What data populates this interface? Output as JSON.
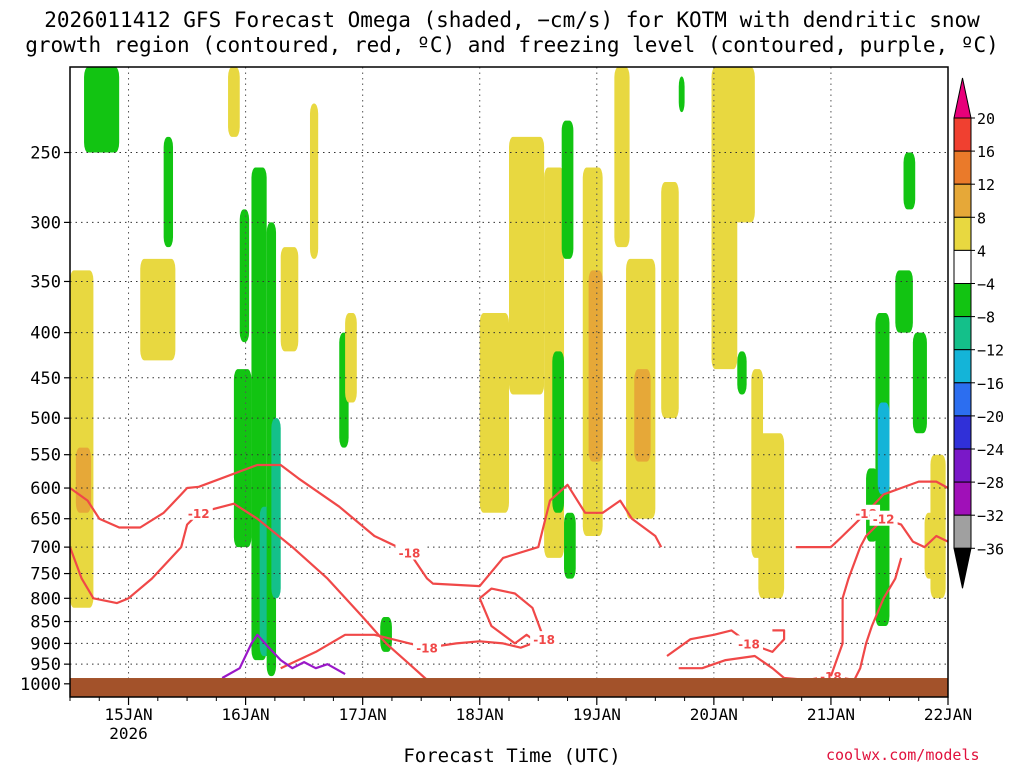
{
  "title": {
    "line1": "2026011412 GFS Forecast Omega (shaded, −cm/s) for KOTM with dendritic snow",
    "line2": "growth region (contoured, red, ºC) and freezing level (contoured, purple, ºC)"
  },
  "xlabel": "Forecast Time (UTC)",
  "credit": "coolwx.com/models",
  "chart_data": {
    "type": "heatmap",
    "x_ticks": [
      {
        "label": "15JAN",
        "sub": "2026",
        "day": 15
      },
      {
        "label": "16JAN",
        "sub": "",
        "day": 16
      },
      {
        "label": "17JAN",
        "sub": "",
        "day": 17
      },
      {
        "label": "18JAN",
        "sub": "",
        "day": 18
      },
      {
        "label": "19JAN",
        "sub": "",
        "day": 19
      },
      {
        "label": "20JAN",
        "sub": "",
        "day": 20
      },
      {
        "label": "21JAN",
        "sub": "",
        "day": 21
      },
      {
        "label": "22JAN",
        "sub": "",
        "day": 22
      }
    ],
    "x_range_days": [
      14.5,
      22.0
    ],
    "y_ticks": [
      250,
      300,
      350,
      400,
      450,
      500,
      550,
      600,
      650,
      700,
      750,
      800,
      850,
      900,
      950,
      1000
    ],
    "y_range_hpa": [
      200,
      1035
    ],
    "y_scale": "log-pressure",
    "grid": true,
    "colorbar": {
      "labels": [
        "20",
        "16",
        "12",
        "8",
        "4",
        "−4",
        "−8",
        "−12",
        "−16",
        "−20",
        "−24",
        "−28",
        "−32",
        "−36"
      ],
      "colors": [
        "#e8007a",
        "#f04030",
        "#ea7a2a",
        "#e6a838",
        "#e8d840",
        "#ffffff",
        "#12c412",
        "#14c08a",
        "#14b4d8",
        "#2c6ef0",
        "#3030d8",
        "#7a18c8",
        "#a010b8",
        "#a0a0a0",
        "#000000"
      ]
    },
    "omega_blobs": [
      {
        "x": [
          14.5,
          14.7
        ],
        "p": [
          340,
          820
        ],
        "v": 5
      },
      {
        "x": [
          14.55,
          14.68
        ],
        "p": [
          540,
          640
        ],
        "v": 9
      },
      {
        "x": [
          14.62,
          14.92
        ],
        "p": [
          200,
          250
        ],
        "v": -7
      },
      {
        "x": [
          15.1,
          15.4
        ],
        "p": [
          330,
          430
        ],
        "v": 5
      },
      {
        "x": [
          15.3,
          15.38
        ],
        "p": [
          240,
          320
        ],
        "v": -7
      },
      {
        "x": [
          15.85,
          15.95
        ],
        "p": [
          200,
          240
        ],
        "v": 5
      },
      {
        "x": [
          15.9,
          16.05
        ],
        "p": [
          440,
          700
        ],
        "v": -7
      },
      {
        "x": [
          15.95,
          16.03
        ],
        "p": [
          290,
          410
        ],
        "v": -7
      },
      {
        "x": [
          16.05,
          16.18
        ],
        "p": [
          260,
          940
        ],
        "v": -7
      },
      {
        "x": [
          16.12,
          16.22
        ],
        "p": [
          630,
          930
        ],
        "v": -11
      },
      {
        "x": [
          16.18,
          16.26
        ],
        "p": [
          300,
          980
        ],
        "v": -7
      },
      {
        "x": [
          16.22,
          16.3
        ],
        "p": [
          500,
          800
        ],
        "v": -11
      },
      {
        "x": [
          16.3,
          16.45
        ],
        "p": [
          320,
          420
        ],
        "v": 5
      },
      {
        "x": [
          16.55,
          16.62
        ],
        "p": [
          220,
          330
        ],
        "v": 5
      },
      {
        "x": [
          16.8,
          16.88
        ],
        "p": [
          400,
          540
        ],
        "v": -7
      },
      {
        "x": [
          16.85,
          16.95
        ],
        "p": [
          380,
          480
        ],
        "v": 5
      },
      {
        "x": [
          17.15,
          17.25
        ],
        "p": [
          840,
          920
        ],
        "v": -7
      },
      {
        "x": [
          18.0,
          18.25
        ],
        "p": [
          380,
          640
        ],
        "v": 5
      },
      {
        "x": [
          18.25,
          18.55
        ],
        "p": [
          240,
          470
        ],
        "v": 5
      },
      {
        "x": [
          18.55,
          18.72
        ],
        "p": [
          260,
          720
        ],
        "v": 5
      },
      {
        "x": [
          18.62,
          18.72
        ],
        "p": [
          420,
          640
        ],
        "v": -7
      },
      {
        "x": [
          18.7,
          18.8
        ],
        "p": [
          230,
          330
        ],
        "v": -7
      },
      {
        "x": [
          18.72,
          18.82
        ],
        "p": [
          640,
          760
        ],
        "v": -7
      },
      {
        "x": [
          18.88,
          19.05
        ],
        "p": [
          260,
          680
        ],
        "v": 5
      },
      {
        "x": [
          18.93,
          19.05
        ],
        "p": [
          340,
          560
        ],
        "v": 9
      },
      {
        "x": [
          19.15,
          19.28
        ],
        "p": [
          200,
          320
        ],
        "v": 5
      },
      {
        "x": [
          19.25,
          19.5
        ],
        "p": [
          330,
          650
        ],
        "v": 5
      },
      {
        "x": [
          19.32,
          19.46
        ],
        "p": [
          440,
          560
        ],
        "v": 9
      },
      {
        "x": [
          19.55,
          19.7
        ],
        "p": [
          270,
          500
        ],
        "v": 5
      },
      {
        "x": [
          19.7,
          19.75
        ],
        "p": [
          205,
          225
        ],
        "v": -7
      },
      {
        "x": [
          19.98,
          20.2
        ],
        "p": [
          200,
          440
        ],
        "v": 5
      },
      {
        "x": [
          20.15,
          20.35
        ],
        "p": [
          200,
          300
        ],
        "v": 5
      },
      {
        "x": [
          20.2,
          20.28
        ],
        "p": [
          420,
          470
        ],
        "v": -7
      },
      {
        "x": [
          20.32,
          20.42
        ],
        "p": [
          440,
          720
        ],
        "v": 5
      },
      {
        "x": [
          20.38,
          20.6
        ],
        "p": [
          520,
          800
        ],
        "v": 5
      },
      {
        "x": [
          21.3,
          21.4
        ],
        "p": [
          570,
          690
        ],
        "v": -7
      },
      {
        "x": [
          21.38,
          21.5
        ],
        "p": [
          380,
          860
        ],
        "v": -7
      },
      {
        "x": [
          21.4,
          21.5
        ],
        "p": [
          480,
          610
        ],
        "v": -14
      },
      {
        "x": [
          21.55,
          21.7
        ],
        "p": [
          340,
          400
        ],
        "v": -7
      },
      {
        "x": [
          21.62,
          21.72
        ],
        "p": [
          250,
          290
        ],
        "v": -7
      },
      {
        "x": [
          21.7,
          21.82
        ],
        "p": [
          400,
          520
        ],
        "v": -7
      },
      {
        "x": [
          21.8,
          21.92
        ],
        "p": [
          640,
          760
        ],
        "v": 5
      },
      {
        "x": [
          21.85,
          21.98
        ],
        "p": [
          550,
          800
        ],
        "v": 5
      }
    ],
    "dgz_contours": [
      {
        "label": "-18",
        "color": "#f04848",
        "points": [
          [
            14.5,
            600
          ],
          [
            14.65,
            620
          ],
          [
            14.75,
            650
          ],
          [
            14.92,
            665
          ],
          [
            15.1,
            665
          ],
          [
            15.3,
            640
          ],
          [
            15.45,
            610
          ],
          [
            15.5,
            600
          ],
          [
            15.6,
            598
          ],
          [
            16.1,
            565
          ],
          [
            16.3,
            565
          ],
          [
            16.45,
            585
          ],
          [
            16.8,
            630
          ],
          [
            17.1,
            680
          ],
          [
            17.4,
            710
          ],
          [
            17.55,
            760
          ],
          [
            17.6,
            770
          ],
          [
            18.0,
            775
          ],
          [
            18.2,
            720
          ],
          [
            18.5,
            700
          ],
          [
            18.6,
            620
          ],
          [
            18.75,
            595
          ],
          [
            18.9,
            640
          ],
          [
            19.05,
            640
          ],
          [
            19.2,
            620
          ],
          [
            19.3,
            650
          ],
          [
            19.5,
            680
          ],
          [
            19.55,
            700
          ]
        ]
      },
      {
        "label": "-12",
        "color": "#f04848",
        "points": [
          [
            14.5,
            700
          ],
          [
            14.6,
            760
          ],
          [
            14.7,
            800
          ],
          [
            14.9,
            810
          ],
          [
            15.0,
            800
          ],
          [
            15.2,
            760
          ],
          [
            15.45,
            700
          ],
          [
            15.5,
            660
          ],
          [
            15.6,
            640
          ],
          [
            15.9,
            625
          ],
          [
            16.1,
            650
          ],
          [
            16.4,
            700
          ],
          [
            16.7,
            760
          ],
          [
            17.0,
            840
          ],
          [
            17.2,
            900
          ],
          [
            17.4,
            950
          ],
          [
            17.55,
            990
          ]
        ]
      },
      {
        "label": "-18",
        "color": "#f04848",
        "points": [
          [
            16.3,
            960
          ],
          [
            16.6,
            920
          ],
          [
            16.85,
            880
          ],
          [
            17.1,
            880
          ],
          [
            17.4,
            900
          ],
          [
            17.55,
            910
          ],
          [
            17.8,
            900
          ],
          [
            18.0,
            895
          ],
          [
            18.2,
            900
          ],
          [
            18.35,
            910
          ],
          [
            18.45,
            900
          ]
        ]
      },
      {
        "label": "-18",
        "color": "#f04848",
        "points": [
          [
            18.0,
            800
          ],
          [
            18.1,
            860
          ],
          [
            18.3,
            900
          ],
          [
            18.4,
            880
          ],
          [
            18.5,
            900
          ],
          [
            18.55,
            890
          ],
          [
            18.45,
            820
          ],
          [
            18.3,
            790
          ],
          [
            18.1,
            780
          ],
          [
            18.0,
            800
          ]
        ]
      },
      {
        "label": "-18",
        "color": "#f04848",
        "points": [
          [
            19.6,
            930
          ],
          [
            19.8,
            890
          ],
          [
            20.0,
            880
          ],
          [
            20.15,
            870
          ],
          [
            20.3,
            900
          ],
          [
            20.5,
            920
          ],
          [
            20.6,
            890
          ],
          [
            20.6,
            870
          ],
          [
            20.5,
            870
          ]
        ]
      },
      {
        "label": "-18",
        "color": "#f04848",
        "points": [
          [
            19.7,
            960
          ],
          [
            19.9,
            960
          ],
          [
            20.1,
            940
          ],
          [
            20.35,
            930
          ],
          [
            20.5,
            960
          ],
          [
            20.6,
            985
          ],
          [
            20.8,
            990
          ],
          [
            21.0,
            980
          ],
          [
            21.2,
            990
          ],
          [
            21.25,
            960
          ],
          [
            21.3,
            900
          ],
          [
            21.35,
            860
          ],
          [
            21.45,
            800
          ],
          [
            21.55,
            760
          ],
          [
            21.6,
            720
          ]
        ]
      },
      {
        "label": "-18",
        "color": "#f04848",
        "points": [
          [
            20.7,
            700
          ],
          [
            20.85,
            700
          ],
          [
            21.0,
            700
          ],
          [
            21.05,
            690
          ],
          [
            21.1,
            680
          ],
          [
            21.2,
            660
          ],
          [
            21.3,
            640
          ],
          [
            21.45,
            610
          ],
          [
            21.6,
            600
          ],
          [
            21.75,
            590
          ],
          [
            21.9,
            590
          ],
          [
            22.0,
            600
          ]
        ]
      },
      {
        "label": "-12",
        "color": "#f04848",
        "points": [
          [
            21.0,
            980
          ],
          [
            21.1,
            900
          ],
          [
            21.1,
            800
          ],
          [
            21.15,
            760
          ],
          [
            21.25,
            700
          ],
          [
            21.3,
            680
          ],
          [
            21.45,
            650
          ],
          [
            21.6,
            660
          ],
          [
            21.7,
            690
          ],
          [
            21.8,
            700
          ],
          [
            21.9,
            680
          ],
          [
            22.0,
            690
          ]
        ]
      }
    ],
    "freezing_contour": {
      "color": "#9a18c8",
      "points": [
        [
          15.8,
          985
        ],
        [
          15.95,
          960
        ],
        [
          16.05,
          900
        ],
        [
          16.1,
          880
        ],
        [
          16.2,
          910
        ],
        [
          16.3,
          940
        ],
        [
          16.4,
          960
        ],
        [
          16.5,
          945
        ],
        [
          16.6,
          960
        ],
        [
          16.7,
          950
        ],
        [
          16.85,
          975
        ]
      ]
    },
    "terrain_color": "#a3522a"
  }
}
